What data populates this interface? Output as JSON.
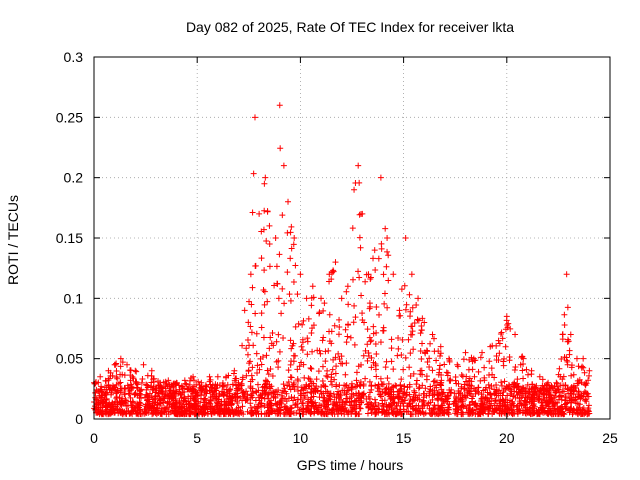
{
  "chart_data": {
    "type": "scatter",
    "title": "Day 082 of 2025, Rate Of TEC Index for receiver lkta",
    "xlabel": "GPS time / hours",
    "ylabel": "ROTI / TECUs",
    "xlim": [
      0,
      25
    ],
    "ylim": [
      0,
      0.3
    ],
    "xticks": [
      "0",
      "5",
      "10",
      "15",
      "20",
      "25"
    ],
    "yticks": [
      "0",
      "0.05",
      "0.1",
      "0.15",
      "0.2",
      "0.25",
      "0.3"
    ],
    "grid": true,
    "marker": "plus",
    "color": "#ff0000",
    "series": [
      {
        "envelope": {
          "x": [
            0,
            0.3,
            0.7,
            1.0,
            1.3,
            1.6,
            2.0,
            2.4,
            2.8,
            3.2,
            3.6,
            4.0,
            4.4,
            4.8,
            5.2,
            5.6,
            6.0,
            6.4,
            6.8,
            7.0,
            7.3,
            7.6,
            7.8,
            8.0,
            8.3,
            8.5,
            8.8,
            9.0,
            9.2,
            9.4,
            9.7,
            10.0,
            10.3,
            10.6,
            11.0,
            11.4,
            11.7,
            12.0,
            12.3,
            12.6,
            12.8,
            13.0,
            13.3,
            13.6,
            13.9,
            14.2,
            14.5,
            14.8,
            15.1,
            15.4,
            15.7,
            16.0,
            16.4,
            16.8,
            17.2,
            17.6,
            18.0,
            18.4,
            18.8,
            19.2,
            19.6,
            20.0,
            20.4,
            20.8,
            21.2,
            21.6,
            22.0,
            22.4,
            22.7,
            22.9,
            23.1,
            23.4,
            23.7,
            24.0
          ],
          "y": [
            0.03,
            0.035,
            0.04,
            0.045,
            0.05,
            0.045,
            0.04,
            0.045,
            0.04,
            0.03,
            0.032,
            0.03,
            0.032,
            0.035,
            0.03,
            0.035,
            0.035,
            0.035,
            0.04,
            0.03,
            0.09,
            0.12,
            0.25,
            0.17,
            0.2,
            0.16,
            0.15,
            0.26,
            0.21,
            0.18,
            0.15,
            0.12,
            0.1,
            0.11,
            0.1,
            0.12,
            0.13,
            0.1,
            0.11,
            0.19,
            0.21,
            0.17,
            0.12,
            0.14,
            0.2,
            0.15,
            0.12,
            0.09,
            0.15,
            0.12,
            0.1,
            0.08,
            0.07,
            0.06,
            0.05,
            0.045,
            0.055,
            0.05,
            0.055,
            0.06,
            0.065,
            0.085,
            0.07,
            0.05,
            0.04,
            0.035,
            0.03,
            0.03,
            0.07,
            0.12,
            0.07,
            0.05,
            0.05,
            0.04
          ]
        },
        "baseline": 0.015
      }
    ]
  }
}
